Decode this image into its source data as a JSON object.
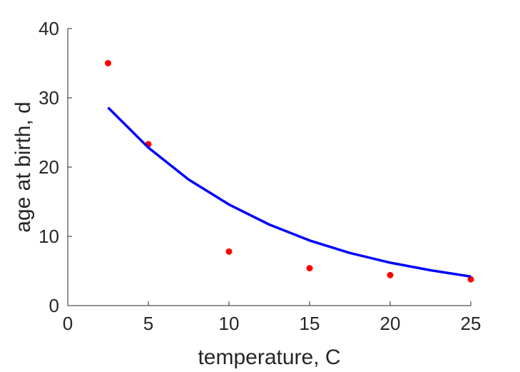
{
  "chart_data": {
    "type": "scatter",
    "title": "",
    "xlabel": "temperature, C",
    "ylabel": "age at birth, d",
    "xlim": [
      0,
      25
    ],
    "ylim": [
      0,
      40
    ],
    "x_ticks": [
      0,
      5,
      10,
      15,
      20,
      25
    ],
    "y_ticks": [
      0,
      10,
      20,
      30,
      40
    ],
    "grid": false,
    "series": [
      {
        "kind": "points",
        "color": "#ff0000",
        "points": [
          {
            "x": 2.5,
            "y": 35.0
          },
          {
            "x": 5,
            "y": 23.3
          },
          {
            "x": 10,
            "y": 7.8
          },
          {
            "x": 15,
            "y": 5.4
          },
          {
            "x": 20,
            "y": 4.4
          },
          {
            "x": 25,
            "y": 3.8
          }
        ]
      },
      {
        "kind": "line",
        "color": "#0000ff",
        "points": [
          {
            "x": 2.5,
            "y": 28.6
          },
          {
            "x": 5,
            "y": 22.8
          },
          {
            "x": 7.5,
            "y": 18.2
          },
          {
            "x": 10,
            "y": 14.6
          },
          {
            "x": 12.5,
            "y": 11.7
          },
          {
            "x": 15,
            "y": 9.4
          },
          {
            "x": 17.5,
            "y": 7.6
          },
          {
            "x": 20,
            "y": 6.2
          },
          {
            "x": 22.5,
            "y": 5.1
          },
          {
            "x": 25,
            "y": 4.2
          }
        ]
      }
    ]
  }
}
